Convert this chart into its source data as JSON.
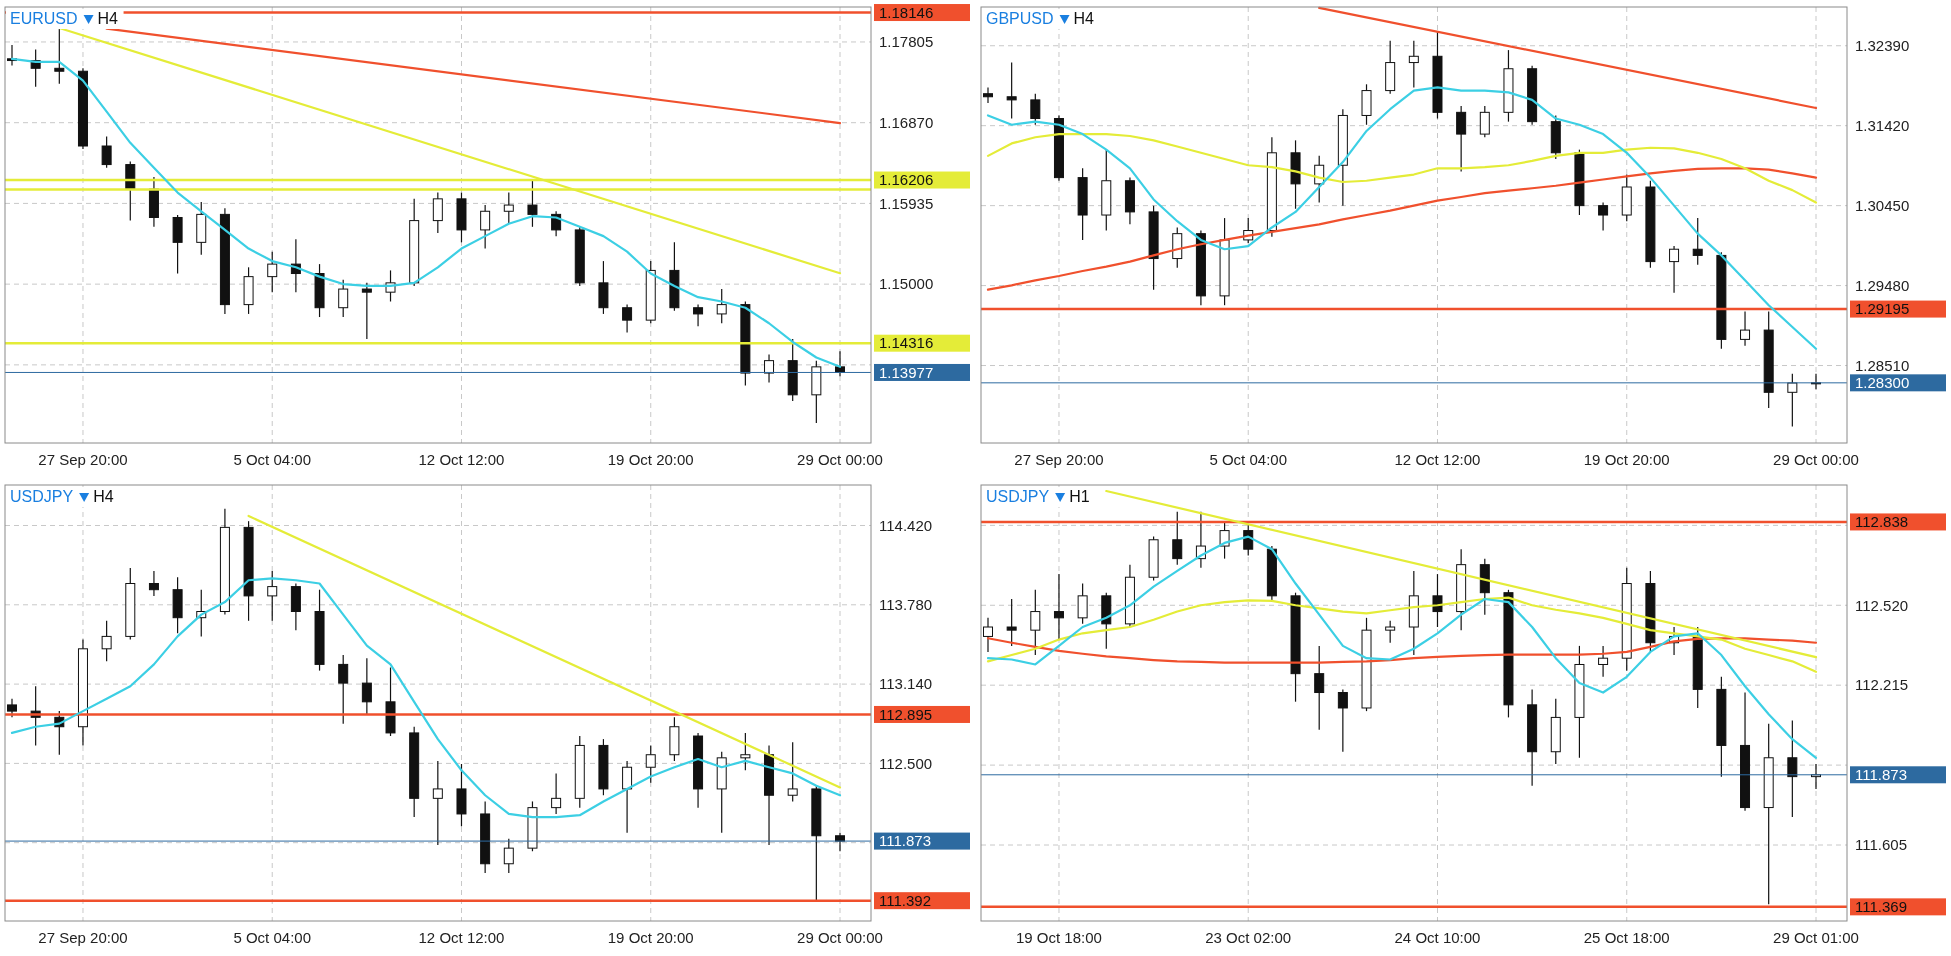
{
  "chart_data": [
    {
      "type": "candlestick",
      "title": "EURUSD",
      "subtitle": "H4",
      "grid": true,
      "categories": [
        null,
        null,
        null,
        "27 Sep 20:00",
        null,
        null,
        null,
        null,
        null,
        null,
        null,
        "5 Oct 04:00",
        null,
        null,
        null,
        null,
        null,
        null,
        null,
        "12 Oct 12:00",
        null,
        null,
        null,
        null,
        null,
        null,
        null,
        "19 Oct 20:00",
        null,
        null,
        null,
        null,
        null,
        null,
        null,
        "29 Oct 00:00"
      ],
      "ylim": [
        1.1316,
        1.1821
      ],
      "yticks": [
        1.17805,
        {
          "value": 1.1687,
          "label": "1.16870"
        },
        1.15935,
        {
          "value": 1.15,
          "label": "1.15000"
        },
        {
          "value": 1.14065,
          "label": null
        }
      ],
      "ohlc": [
        [
          1.1761,
          1.17769,
          1.17531,
          1.1759
        ],
        [
          1.1759,
          1.17719,
          1.17286,
          1.175
        ],
        [
          1.175,
          1.1797,
          1.17322,
          1.17466
        ],
        [
          1.17466,
          1.175,
          1.16565,
          1.166
        ],
        [
          1.166,
          1.1671,
          1.16349,
          1.16385
        ],
        [
          1.16385,
          1.1642,
          1.15736,
          1.161
        ],
        [
          1.161,
          1.16241,
          1.15664,
          1.15772
        ],
        [
          1.15772,
          1.158,
          1.15124,
          1.15484
        ],
        [
          1.15484,
          1.15952,
          1.1534,
          1.15808
        ],
        [
          1.15808,
          1.1588,
          1.14655,
          1.14763
        ],
        [
          1.14763,
          1.15195,
          1.14655,
          1.15087
        ],
        [
          1.15087,
          1.15376,
          1.14907,
          1.15232
        ],
        [
          1.15232,
          1.1552,
          1.14907,
          1.15123
        ],
        [
          1.15123,
          1.15232,
          1.14619,
          1.14727
        ],
        [
          1.14727,
          1.15051,
          1.14619,
          1.14943
        ],
        [
          1.14943,
          1.15015,
          1.14366,
          1.14907
        ],
        [
          1.14907,
          1.15159,
          1.14799,
          1.15015
        ],
        [
          1.15015,
          1.15988,
          1.14979,
          1.15736
        ],
        [
          1.15736,
          1.16061,
          1.15592,
          1.15988
        ],
        [
          1.15988,
          1.16061,
          1.15484,
          1.15628
        ],
        [
          1.15628,
          1.15916,
          1.15412,
          1.15844
        ],
        [
          1.15844,
          1.16061,
          1.157,
          1.15916
        ],
        [
          1.15916,
          1.16205,
          1.15664,
          1.15808
        ],
        [
          1.15808,
          1.15844,
          1.15556,
          1.15628
        ],
        [
          1.15628,
          1.15664,
          1.14979,
          1.15015
        ],
        [
          1.15015,
          1.15267,
          1.14655,
          1.14727
        ],
        [
          1.14727,
          1.14763,
          1.14439,
          1.14583
        ],
        [
          1.14583,
          1.15267,
          1.14547,
          1.15159
        ],
        [
          1.15159,
          1.15484,
          1.14691,
          1.14727
        ],
        [
          1.14727,
          1.14763,
          1.14511,
          1.14655
        ],
        [
          1.14655,
          1.14943,
          1.14547,
          1.14763
        ],
        [
          1.14763,
          1.14799,
          1.13826,
          1.1397
        ],
        [
          1.1397,
          1.14186,
          1.13862,
          1.14114
        ],
        [
          1.14114,
          1.14366,
          1.13646,
          1.13718
        ],
        [
          1.13718,
          1.14114,
          1.13393,
          1.14042
        ],
        [
          1.14042,
          1.14222,
          1.13934,
          1.13977
        ]
      ],
      "series": [
        {
          "type": "line",
          "color": "#f0502d",
          "values": [
            null,
            null,
            null,
            null,
            1.1796,
            null,
            null,
            null,
            null,
            null,
            null,
            null,
            null,
            null,
            null,
            null,
            null,
            null,
            null,
            null,
            null,
            null,
            null,
            null,
            null,
            null,
            null,
            null,
            null,
            null,
            null,
            null,
            null,
            null,
            null,
            1.16866
          ]
        },
        {
          "type": "line",
          "color": "#e4ec38",
          "values": [
            null,
            null,
            1.17967,
            null,
            null,
            null,
            null,
            null,
            null,
            null,
            null,
            null,
            null,
            null,
            null,
            null,
            null,
            null,
            null,
            null,
            null,
            null,
            null,
            null,
            null,
            null,
            null,
            null,
            null,
            null,
            null,
            null,
            null,
            null,
            null,
            1.15126
          ]
        },
        {
          "type": "line",
          "color": "#3ccfe4",
          "values": [
            1.1761,
            1.17574,
            1.17574,
            1.17358,
            1.16998,
            1.16637,
            1.16349,
            1.16061,
            1.15844,
            1.15628,
            1.15412,
            1.15267,
            1.15195,
            1.15087,
            1.15001,
            1.14979,
            1.14979,
            1.15015,
            1.15195,
            1.15412,
            1.15556,
            1.157,
            1.15787,
            1.15772,
            1.15664,
            1.15556,
            1.15376,
            1.15123,
            1.14979,
            1.14849,
            1.14799,
            1.14727,
            1.14547,
            1.1433,
            1.1415,
            1.14042
          ]
        }
      ],
      "ref_lines": [
        {
          "axis": "y",
          "value": 1.18146,
          "label": "1.18146",
          "color": "#f0502d"
        },
        {
          "axis": "y",
          "value": 1.16206,
          "label": "1.16206",
          "color": "#e4ec38"
        },
        {
          "axis": "y",
          "value": 1.16096,
          "label": null,
          "color": "#e4ec38"
        },
        {
          "axis": "y",
          "value": 1.14316,
          "label": "1.14316",
          "color": "#e4ec38"
        },
        {
          "axis": "y",
          "value": 1.13977,
          "label": "1.13977",
          "color": "#2d6aa0"
        }
      ]
    },
    {
      "type": "candlestick",
      "title": "GBPUSD",
      "subtitle": "H4",
      "grid": true,
      "categories": [
        null,
        null,
        null,
        "27 Sep 20:00",
        null,
        null,
        null,
        null,
        null,
        null,
        null,
        "5 Oct 04:00",
        null,
        null,
        null,
        null,
        null,
        null,
        null,
        "12 Oct 12:00",
        null,
        null,
        null,
        null,
        null,
        null,
        null,
        "19 Oct 20:00",
        null,
        null,
        null,
        null,
        null,
        null,
        null,
        "29 Oct 00:00"
      ],
      "ylim": [
        1.2757,
        1.3286
      ],
      "yticks": [
        {
          "value": 1.3239,
          "label": "1.32390"
        },
        {
          "value": 1.3142,
          "label": "1.31420"
        },
        {
          "value": 1.3045,
          "label": "1.30450"
        },
        {
          "value": 1.2948,
          "label": "1.29480"
        },
        {
          "value": 1.2851,
          "label": "1.28510"
        }
      ],
      "ohlc": [
        [
          1.31808,
          1.31884,
          1.31695,
          1.31771
        ],
        [
          1.31771,
          1.32186,
          1.31507,
          1.31733
        ],
        [
          1.31733,
          1.31808,
          1.31431,
          1.31507
        ],
        [
          1.31507,
          1.31544,
          1.30752,
          1.3079
        ],
        [
          1.3079,
          1.30903,
          1.30034,
          1.30336
        ],
        [
          1.30336,
          1.31129,
          1.30148,
          1.30752
        ],
        [
          1.30752,
          1.3079,
          1.30223,
          1.30374
        ],
        [
          1.30374,
          1.3045,
          1.2943,
          1.29808
        ],
        [
          1.29808,
          1.30185,
          1.29695,
          1.3011
        ],
        [
          1.3011,
          1.30148,
          1.29242,
          1.29355
        ],
        [
          1.29355,
          1.30299,
          1.29242,
          1.30034
        ],
        [
          1.30034,
          1.30299,
          1.29997,
          1.30148
        ],
        [
          1.30148,
          1.3128,
          1.30072,
          1.31091
        ],
        [
          1.31091,
          1.31242,
          1.30412,
          1.30714
        ],
        [
          1.30714,
          1.31054,
          1.30487,
          1.3094
        ],
        [
          1.3094,
          1.3162,
          1.3045,
          1.31544
        ],
        [
          1.31544,
          1.31922,
          1.31431,
          1.31846
        ],
        [
          1.31846,
          1.3245,
          1.31808,
          1.32186
        ],
        [
          1.32186,
          1.3245,
          1.31884,
          1.32262
        ],
        [
          1.32262,
          1.32564,
          1.31507,
          1.31582
        ],
        [
          1.31582,
          1.31658,
          1.30865,
          1.31318
        ],
        [
          1.31318,
          1.31658,
          1.3128,
          1.31582
        ],
        [
          1.31582,
          1.32337,
          1.31469,
          1.32111
        ],
        [
          1.32111,
          1.32148,
          1.31431,
          1.31469
        ],
        [
          1.31469,
          1.31544,
          1.31016,
          1.31091
        ],
        [
          1.31091,
          1.31129,
          1.30336,
          1.3045
        ],
        [
          1.3045,
          1.30487,
          1.30148,
          1.30336
        ],
        [
          1.30336,
          1.30827,
          1.30261,
          1.30676
        ],
        [
          1.30676,
          1.30752,
          1.29695,
          1.29771
        ],
        [
          1.29771,
          1.29959,
          1.29393,
          1.29921
        ],
        [
          1.29921,
          1.30299,
          1.29732,
          1.29846
        ],
        [
          1.29846,
          1.29883,
          1.28713,
          1.28827
        ],
        [
          1.28827,
          1.29166,
          1.28751,
          1.2894
        ],
        [
          1.2894,
          1.29166,
          1.27996,
          1.28185
        ],
        [
          1.28185,
          1.28411,
          1.27769,
          1.28298
        ],
        [
          1.28298,
          1.28411,
          1.28222,
          1.283
        ]
      ],
      "series": [
        {
          "type": "line",
          "color": "#f0502d",
          "values": [
            1.2943,
            1.29483,
            1.29544,
            1.29596,
            1.29657,
            1.2971,
            1.2977,
            1.29846,
            1.29921,
            1.29981,
            1.30034,
            1.30087,
            1.30132,
            1.30178,
            1.30223,
            1.30283,
            1.30336,
            1.30389,
            1.3045,
            1.3051,
            1.30555,
            1.30601,
            1.30631,
            1.30661,
            1.30691,
            1.30729,
            1.30767,
            1.30804,
            1.30842,
            1.30872,
            1.30895,
            1.30903,
            1.30903,
            1.30887,
            1.30842,
            1.3079
          ]
        },
        {
          "type": "line",
          "color": "#f0502d",
          "values": [
            null,
            null,
            null,
            null,
            null,
            null,
            null,
            null,
            null,
            null,
            null,
            null,
            null,
            null,
            1.3285,
            null,
            null,
            null,
            null,
            null,
            null,
            null,
            null,
            null,
            null,
            null,
            null,
            null,
            null,
            null,
            null,
            null,
            null,
            null,
            null,
            1.31635
          ]
        },
        {
          "type": "line",
          "color": "#e4ec38",
          "values": [
            1.31054,
            1.31205,
            1.3128,
            1.31318,
            1.31318,
            1.31318,
            1.31295,
            1.31242,
            1.31167,
            1.31091,
            1.31016,
            1.3094,
            1.30918,
            1.30865,
            1.3079,
            1.30737,
            1.30752,
            1.3079,
            1.30827,
            1.30903,
            1.30903,
            1.30918,
            1.3094,
            1.30993,
            1.31054,
            1.31091,
            1.31091,
            1.31129,
            1.31152,
            1.31144,
            1.31091,
            1.31016,
            1.30903,
            1.30752,
            1.30638,
            1.30487
          ]
        },
        {
          "type": "line",
          "color": "#3ccfe4",
          "values": [
            1.31544,
            1.31431,
            1.31469,
            1.31431,
            1.31318,
            1.31129,
            1.30903,
            1.30525,
            1.30261,
            1.30034,
            1.29921,
            1.29959,
            1.30185,
            1.30374,
            1.30676,
            1.30978,
            1.31356,
            1.3162,
            1.31846,
            1.31884,
            1.31846,
            1.31846,
            1.31824,
            1.31733,
            1.31507,
            1.31431,
            1.31318,
            1.31091,
            1.3079,
            1.3045,
            1.3011,
            1.29846,
            1.29544,
            1.29242,
            1.28978,
            1.28713
          ]
        }
      ],
      "ref_lines": [
        {
          "axis": "y",
          "value": 1.29195,
          "label": "1.29195",
          "color": "#f0502d"
        },
        {
          "axis": "y",
          "value": 1.283,
          "label": "1.28300",
          "color": "#2d6aa0"
        }
      ]
    },
    {
      "type": "candlestick",
      "title": "USDJPY",
      "subtitle": "H4",
      "grid": true,
      "categories": [
        null,
        null,
        null,
        "27 Sep 20:00",
        null,
        null,
        null,
        null,
        null,
        null,
        null,
        "5 Oct 04:00",
        null,
        null,
        null,
        null,
        null,
        null,
        null,
        "12 Oct 12:00",
        null,
        null,
        null,
        null,
        null,
        null,
        null,
        "19 Oct 20:00",
        null,
        null,
        null,
        null,
        null,
        null,
        null,
        "29 Oct 00:00"
      ],
      "ylim": [
        111.228,
        114.747
      ],
      "yticks": [
        {
          "value": 114.42,
          "label": "114.420"
        },
        {
          "value": 113.78,
          "label": "113.780"
        },
        {
          "value": 113.14,
          "label": "113.140"
        },
        {
          "value": 112.5,
          "label": "112.500"
        },
        {
          "value": 111.86,
          "label": null
        }
      ],
      "ohlc": [
        [
          112.972,
          113.022,
          112.872,
          112.922
        ],
        [
          112.922,
          113.123,
          112.645,
          112.872
        ],
        [
          112.872,
          112.922,
          112.57,
          112.796
        ],
        [
          112.796,
          113.5,
          112.645,
          113.425
        ],
        [
          113.425,
          113.651,
          113.324,
          113.525
        ],
        [
          113.525,
          114.078,
          113.5,
          113.952
        ],
        [
          113.952,
          114.053,
          113.852,
          113.902
        ],
        [
          113.902,
          114.003,
          113.55,
          113.676
        ],
        [
          113.676,
          113.902,
          113.525,
          113.726
        ],
        [
          113.726,
          114.556,
          113.701,
          114.405
        ],
        [
          114.405,
          114.455,
          113.651,
          113.852
        ],
        [
          113.852,
          114.053,
          113.651,
          113.927
        ],
        [
          113.927,
          113.952,
          113.575,
          113.726
        ],
        [
          113.726,
          113.902,
          113.249,
          113.299
        ],
        [
          113.299,
          113.374,
          112.821,
          113.148
        ],
        [
          113.148,
          113.349,
          112.897,
          112.997
        ],
        [
          112.997,
          113.274,
          112.721,
          112.746
        ],
        [
          112.746,
          112.796,
          112.067,
          112.218
        ],
        [
          112.218,
          112.52,
          111.841,
          112.294
        ],
        [
          112.294,
          112.495,
          111.992,
          112.092
        ],
        [
          112.092,
          112.193,
          111.615,
          111.69
        ],
        [
          111.69,
          111.891,
          111.615,
          111.816
        ],
        [
          111.816,
          112.193,
          111.791,
          112.143
        ],
        [
          112.143,
          112.419,
          112.092,
          112.218
        ],
        [
          112.218,
          112.721,
          112.143,
          112.645
        ],
        [
          112.645,
          112.696,
          112.243,
          112.294
        ],
        [
          112.294,
          112.52,
          111.941,
          112.469
        ],
        [
          112.469,
          112.645,
          112.344,
          112.57
        ],
        [
          112.57,
          112.872,
          112.52,
          112.796
        ],
        [
          112.721,
          112.746,
          112.143,
          112.294
        ],
        [
          112.294,
          112.595,
          111.941,
          112.545
        ],
        [
          112.545,
          112.746,
          112.444,
          112.57
        ],
        [
          112.57,
          112.645,
          111.841,
          112.243
        ],
        [
          112.243,
          112.671,
          112.193,
          112.294
        ],
        [
          112.294,
          112.319,
          111.389,
          111.916
        ],
        [
          111.916,
          111.941,
          111.791,
          111.873
        ]
      ],
      "series": [
        {
          "type": "line",
          "color": "#e4ec38",
          "values": [
            null,
            null,
            null,
            null,
            null,
            null,
            null,
            null,
            null,
            null,
            114.497,
            null,
            null,
            null,
            null,
            null,
            null,
            null,
            null,
            null,
            null,
            null,
            null,
            null,
            null,
            null,
            null,
            null,
            null,
            null,
            null,
            null,
            null,
            null,
            null,
            112.306
          ]
        },
        {
          "type": "line",
          "color": "#3ccfe4",
          "values": [
            112.746,
            112.796,
            112.821,
            112.922,
            113.022,
            113.123,
            113.299,
            113.525,
            113.701,
            113.802,
            113.978,
            113.993,
            113.978,
            113.952,
            113.701,
            113.45,
            113.299,
            112.997,
            112.696,
            112.444,
            112.243,
            112.092,
            112.067,
            112.067,
            112.082,
            112.193,
            112.294,
            112.394,
            112.469,
            112.535,
            112.469,
            112.52,
            112.469,
            112.419,
            112.319,
            112.243
          ]
        }
      ],
      "ref_lines": [
        {
          "axis": "y",
          "value": 112.895,
          "label": "112.895",
          "color": "#f0502d"
        },
        {
          "axis": "y",
          "value": 111.392,
          "label": "111.392",
          "color": "#f0502d"
        },
        {
          "axis": "y",
          "value": 111.873,
          "label": "111.873",
          "color": "#2d6aa0"
        }
      ]
    },
    {
      "type": "candlestick",
      "title": "USDJPY",
      "subtitle": "H1",
      "grid": true,
      "categories": [
        null,
        null,
        null,
        "19 Oct 18:00",
        null,
        null,
        null,
        null,
        null,
        null,
        null,
        "23 Oct 02:00",
        null,
        null,
        null,
        null,
        null,
        null,
        null,
        "24 Oct 10:00",
        null,
        null,
        null,
        null,
        null,
        null,
        null,
        "25 Oct 18:00",
        null,
        null,
        null,
        null,
        null,
        null,
        null,
        "29 Oct 01:00"
      ],
      "ylim": [
        111.315,
        112.979
      ],
      "yticks": [
        {
          "value": 112.825,
          "label": null
        },
        {
          "value": 112.52,
          "label": "112.520"
        },
        112.215,
        {
          "value": 111.91,
          "label": null
        },
        111.605
      ],
      "ohlc": [
        [
          112.401,
          112.472,
          112.342,
          112.437
        ],
        [
          112.437,
          112.544,
          112.365,
          112.425
        ],
        [
          112.425,
          112.579,
          112.33,
          112.496
        ],
        [
          112.496,
          112.639,
          112.389,
          112.472
        ],
        [
          112.472,
          112.603,
          112.449,
          112.556
        ],
        [
          112.556,
          112.568,
          112.354,
          112.449
        ],
        [
          112.449,
          112.675,
          112.437,
          112.627
        ],
        [
          112.627,
          112.782,
          112.615,
          112.77
        ],
        [
          112.77,
          112.877,
          112.675,
          112.698
        ],
        [
          112.698,
          112.877,
          112.663,
          112.746
        ],
        [
          112.746,
          112.841,
          112.698,
          112.805
        ],
        [
          112.805,
          112.829,
          112.71,
          112.734
        ],
        [
          112.734,
          112.746,
          112.532,
          112.556
        ],
        [
          112.556,
          112.568,
          112.152,
          112.259
        ],
        [
          112.259,
          112.365,
          112.045,
          112.187
        ],
        [
          112.187,
          112.199,
          111.961,
          112.128
        ],
        [
          112.128,
          112.472,
          112.116,
          112.425
        ],
        [
          112.425,
          112.461,
          112.377,
          112.437
        ],
        [
          112.437,
          112.651,
          112.33,
          112.556
        ],
        [
          112.556,
          112.639,
          112.437,
          112.496
        ],
        [
          112.496,
          112.734,
          112.425,
          112.675
        ],
        [
          112.675,
          112.698,
          112.484,
          112.568
        ],
        [
          112.568,
          112.579,
          112.092,
          112.14
        ],
        [
          112.14,
          112.199,
          111.831,
          111.961
        ],
        [
          111.961,
          112.163,
          111.914,
          112.092
        ],
        [
          112.092,
          112.365,
          111.938,
          112.294
        ],
        [
          112.294,
          112.365,
          112.247,
          112.318
        ],
        [
          112.318,
          112.663,
          112.27,
          112.603
        ],
        [
          112.603,
          112.651,
          112.342,
          112.377
        ],
        [
          112.377,
          112.437,
          112.33,
          112.401
        ],
        [
          112.401,
          112.437,
          112.128,
          112.199
        ],
        [
          112.199,
          112.247,
          111.866,
          111.985
        ],
        [
          111.985,
          112.187,
          111.736,
          111.748
        ],
        [
          111.748,
          112.068,
          111.379,
          111.938
        ],
        [
          111.938,
          112.08,
          111.712,
          111.866
        ],
        [
          111.866,
          111.914,
          111.819,
          111.873
        ]
      ],
      "series": [
        {
          "type": "line",
          "color": "#f0502d",
          "values": [
            112.394,
            112.377,
            112.361,
            112.346,
            112.335,
            112.325,
            112.318,
            112.311,
            112.306,
            112.304,
            112.301,
            112.301,
            112.301,
            112.301,
            112.301,
            112.304,
            112.306,
            112.311,
            112.318,
            112.323,
            112.327,
            112.33,
            112.332,
            112.332,
            112.332,
            112.332,
            112.335,
            112.342,
            112.361,
            112.382,
            112.392,
            112.394,
            112.394,
            112.389,
            112.385,
            112.377
          ]
        },
        {
          "type": "line",
          "color": "#e4ec38",
          "values": [
            112.306,
            112.33,
            112.354,
            112.389,
            112.413,
            112.425,
            112.437,
            112.465,
            112.496,
            112.52,
            112.532,
            112.539,
            112.537,
            112.52,
            112.508,
            112.496,
            112.489,
            112.501,
            112.513,
            112.52,
            112.532,
            112.544,
            112.549,
            112.52,
            112.503,
            112.489,
            112.472,
            112.449,
            112.425,
            112.413,
            112.401,
            112.389,
            112.354,
            112.33,
            112.306,
            112.266
          ]
        },
        {
          "type": "line",
          "color": "#e4ec38",
          "values": [
            null,
            null,
            null,
            null,
            null,
            112.956,
            null,
            null,
            null,
            null,
            null,
            null,
            null,
            null,
            null,
            null,
            null,
            null,
            null,
            null,
            null,
            null,
            null,
            null,
            null,
            null,
            null,
            null,
            null,
            null,
            null,
            null,
            null,
            null,
            null,
            112.322
          ]
        },
        {
          "type": "line",
          "color": "#3ccfe4",
          "values": [
            112.318,
            112.313,
            112.294,
            112.365,
            112.437,
            112.472,
            112.52,
            112.591,
            112.651,
            112.71,
            112.758,
            112.782,
            112.734,
            112.603,
            112.484,
            112.365,
            112.318,
            112.313,
            112.354,
            112.413,
            112.484,
            112.544,
            112.532,
            112.437,
            112.318,
            112.223,
            112.187,
            112.247,
            112.342,
            112.401,
            112.413,
            112.33,
            112.211,
            112.104,
            112.009,
            111.938
          ]
        }
      ],
      "ref_lines": [
        {
          "axis": "y",
          "value": 112.838,
          "label": "112.838",
          "color": "#f0502d"
        },
        {
          "axis": "y",
          "value": 111.369,
          "label": "111.369",
          "color": "#f0502d"
        },
        {
          "axis": "y",
          "value": 111.873,
          "label": "111.873",
          "color": "#2d6aa0"
        }
      ]
    }
  ]
}
